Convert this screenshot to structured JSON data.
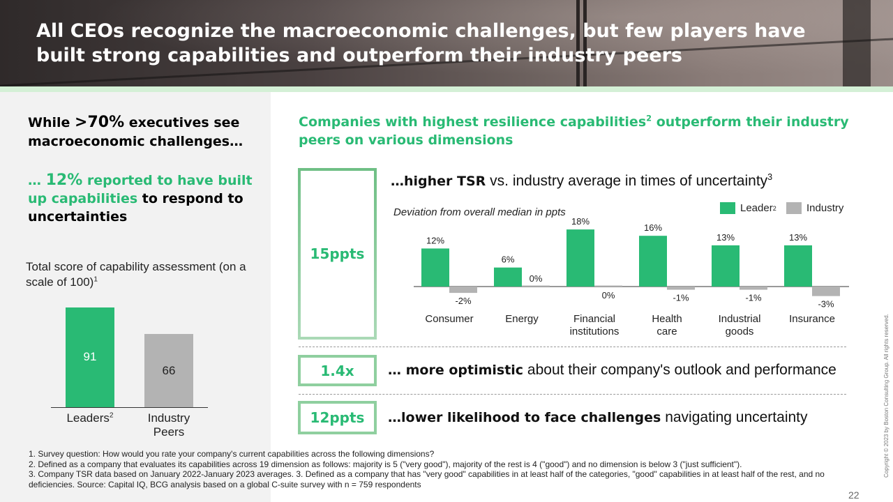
{
  "header": {
    "title": "All CEOs recognize the macroeconomic challenges, but few players have built strong capabilities and outperform their industry peers"
  },
  "left": {
    "headline_pre": "While ",
    "headline_gt": ">",
    "headline_big": "70%",
    "headline_post": " executives see macroeconomic challenges…",
    "sub_green_1": "… ",
    "sub_big": "12%",
    "sub_green_2": " reported to have built up capabilities",
    "sub_black": " to respond to uncertainties",
    "score_label": "Total score of capability assessment (on a scale of 100)",
    "score_label_sup": "1",
    "bars": [
      {
        "label": "Leaders",
        "sup": "2",
        "value": "91",
        "color": "#29ba74"
      },
      {
        "label": "Industry Peers",
        "sup": "",
        "value": "66",
        "color": "#b3b3b3"
      }
    ]
  },
  "right": {
    "title_part1": "Companies with highest resilience capabilities",
    "title_sup": "2",
    "title_part2": " outperform their industry peers on various dimensions",
    "row1": {
      "badge": "15ppts",
      "bold": "…higher TSR",
      "text": " vs. industry average in times of uncertainty",
      "sup": "3"
    },
    "row2": {
      "badge": "1.4x",
      "bold": "… more optimistic",
      "text": " about their company's outlook and performance"
    },
    "row3": {
      "badge": "12ppts",
      "bold": "…lower likelihood to face challenges",
      "text": " navigating uncertainty"
    },
    "deviation_label": "Deviation from overall median in ppts",
    "legend_leader": "Leader",
    "legend_leader_sup": "2",
    "legend_industry": "Industry"
  },
  "chart_data": {
    "type": "bar",
    "categories": [
      "Consumer",
      "Energy",
      "Financial institutions",
      "Health care",
      "Industrial goods",
      "Insurance"
    ],
    "series": [
      {
        "name": "Leader",
        "color": "#29ba74",
        "values": [
          12,
          6,
          18,
          16,
          13,
          13
        ],
        "labels": [
          "12%",
          "6%",
          "18%",
          "16%",
          "13%",
          "13%"
        ]
      },
      {
        "name": "Industry",
        "color": "#b3b3b3",
        "values": [
          -2,
          0,
          0,
          -1,
          -1,
          -3
        ],
        "labels": [
          "-2%",
          "0%",
          "0%",
          "-1%",
          "-1%",
          "-3%"
        ]
      }
    ],
    "ylabel": "Deviation from overall median in ppts",
    "ylim": [
      -3,
      18
    ]
  },
  "footnotes": [
    "1. Survey question: How would you rate your company's current capabilities across the following dimensions?",
    "2. Defined as a company that evaluates its capabilities across 19 dimension as follows: majority  is 5 (\"very good\"), majority of the rest is 4 (\"good\") and no dimension is below 3 (\"just sufficient\").",
    "3. Company TSR data based on January 2022-January 2023 averages.  3. Defined as a company that has \"very good\" capabilities in at least half of the categories, \"good\" capabilities in at least half of the rest, and no deficiencies.        Source: Capital IQ, BCG analysis based on a global C-suite survey with n = 759 respondents"
  ],
  "page_number": "22",
  "copyright": "Copyright © 2023 by Boston Consulting Group. All rights reserved."
}
